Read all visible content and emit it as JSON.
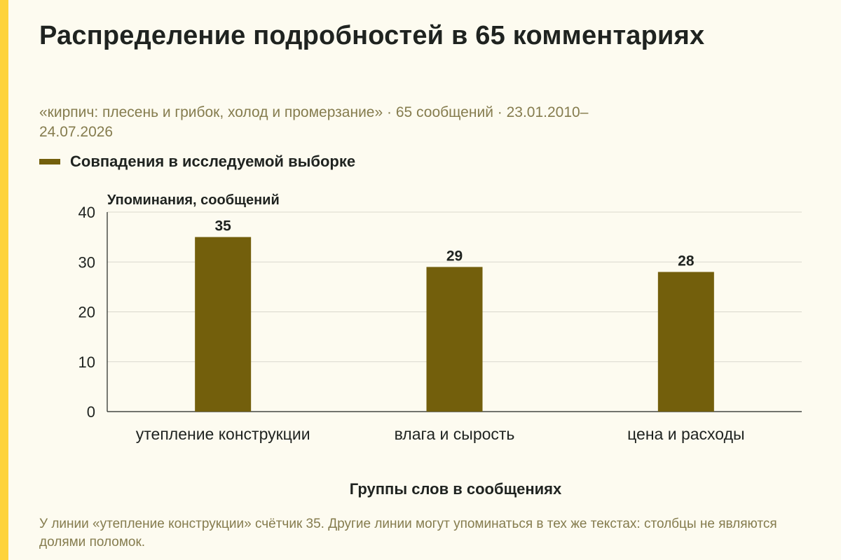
{
  "page": {
    "title": "Распределение подробностей в 65 комментариях",
    "subtitle": "«кирпич: плесень и грибок, холод и промерзание» · 65 сообщений · 23.01.2010–24.07.2026",
    "legend_label": "Совпадения в исследуемой выборке",
    "footnote": "У линии «утепление конструкции» счётчик 35. Другие линии могут упоминаться в тех же текстах: столбцы не являются долями поломок."
  },
  "colors": {
    "background": "#fdfbf0",
    "accent_strip": "#fed33c",
    "bar": "#735f0c",
    "text": "#1f2320",
    "muted_text": "#857c4e",
    "grid": "#dad8cd"
  },
  "chart_data": {
    "type": "bar",
    "title": "Распределение подробностей в 65 комментариях",
    "xlabel": "Группы слов в сообщениях",
    "ylabel": "Упоминания, сообщений",
    "categories": [
      "утепление конструкции",
      "влага и сырость",
      "цена и расходы"
    ],
    "series": [
      {
        "name": "Совпадения в исследуемой выборке",
        "values": [
          35,
          29,
          28
        ]
      }
    ],
    "ylim": [
      0,
      40
    ],
    "yticks": [
      0,
      10,
      20,
      30,
      40
    ],
    "grid": true,
    "legend_position": "top-left"
  }
}
